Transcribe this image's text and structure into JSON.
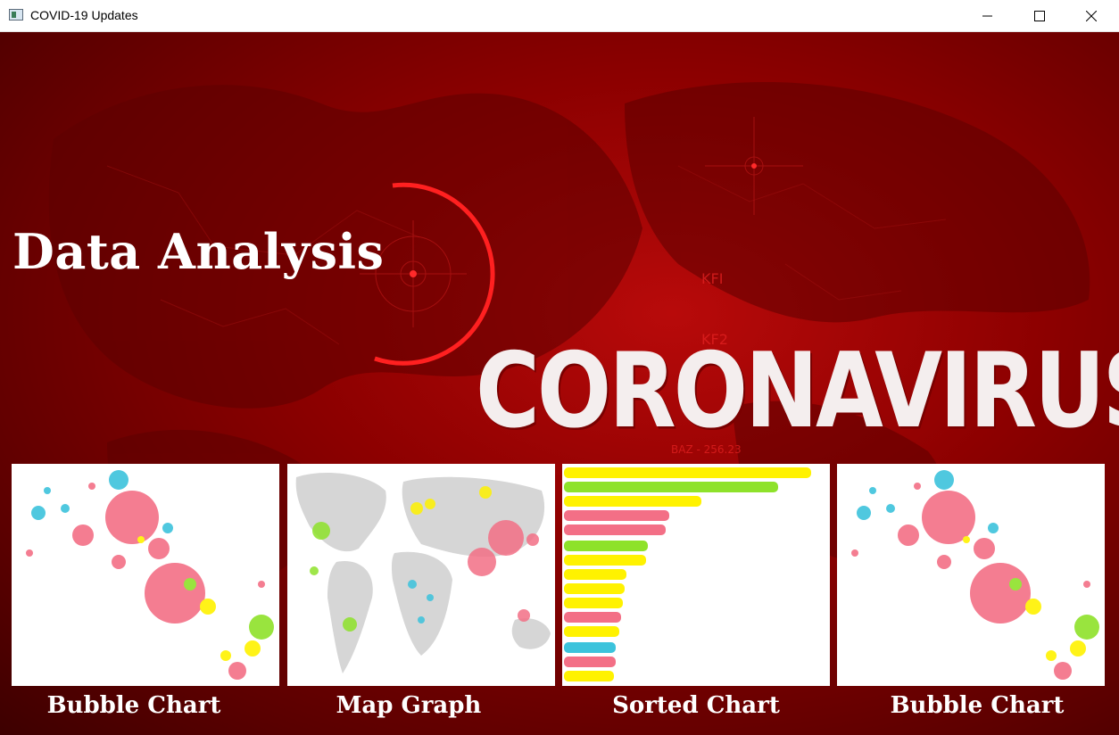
{
  "window": {
    "title": "COVID-19 Updates",
    "app_icon": "app-window-icon",
    "controls": {
      "minimize": "minimize-icon",
      "maximize": "maximize-icon",
      "close": "close-icon"
    }
  },
  "main": {
    "heading": "Data Analysis",
    "banner": "CORONAVIRUS",
    "background_text": {
      "kf1": "KFI",
      "kf2": "KF2",
      "baz": "BAZ - 256.23"
    }
  },
  "colors": {
    "background_red": "#8c0000",
    "pink": "#f36f86",
    "cyan": "#3cc3dc",
    "yellow": "#fff200",
    "green": "#8ee22a",
    "map_land": "#d6d6d6"
  },
  "gallery": {
    "items": [
      {
        "caption": "Bubble Chart",
        "preview": "bubble-chart"
      },
      {
        "caption": "Map Graph",
        "preview": "map-graph"
      },
      {
        "caption": "Sorted Chart",
        "preview": "sorted-chart"
      },
      {
        "caption": "Bubble Chart",
        "preview": "bubble-chart"
      }
    ]
  }
}
